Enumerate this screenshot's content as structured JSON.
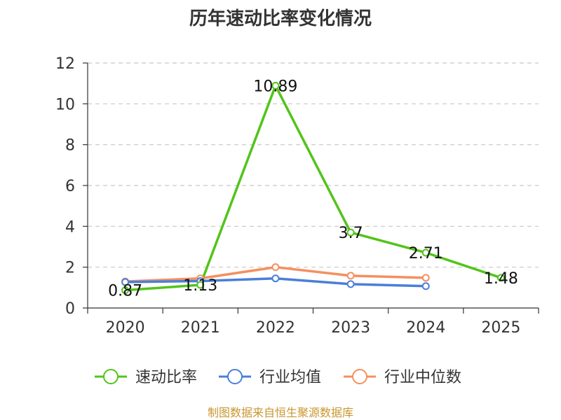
{
  "chart_data": {
    "type": "line",
    "title": "历年速动比率变化情况",
    "x": [
      "2020",
      "2021",
      "2022",
      "2023",
      "2024",
      "2025"
    ],
    "ylim": [
      0,
      12
    ],
    "yticks": [
      0,
      2,
      4,
      6,
      8,
      10,
      12
    ],
    "grid": true,
    "legend_position": "bottom",
    "series": [
      {
        "name": "速动比率",
        "color": "#52c41a",
        "values": [
          0.87,
          1.13,
          10.89,
          3.7,
          2.71,
          1.48
        ],
        "labels": [
          "0.87",
          "1.13",
          "10.89",
          "3.7",
          "2.71",
          "1.48"
        ]
      },
      {
        "name": "行业均值",
        "color": "#4a7fd8",
        "values": [
          1.27,
          1.32,
          1.45,
          1.17,
          1.07,
          null
        ]
      },
      {
        "name": "行业中位数",
        "color": "#f58f5f",
        "values": [
          1.3,
          1.45,
          2.0,
          1.58,
          1.48,
          null
        ]
      }
    ]
  },
  "source": "制图数据来自恒生聚源数据库"
}
